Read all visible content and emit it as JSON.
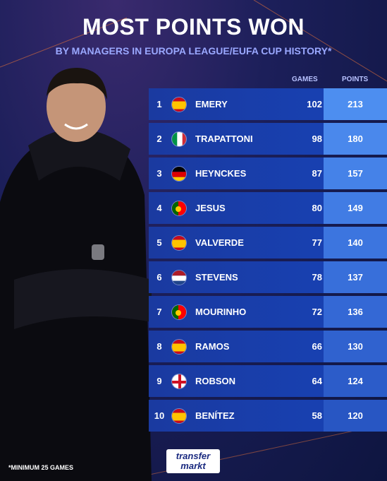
{
  "header": {
    "title": "MOST POINTS WON",
    "subtitle": "BY MANAGERS IN EUROPA LEAGUE/EUFA CUP HISTORY*"
  },
  "columns": {
    "games": "GAMES",
    "points": "POINTS"
  },
  "rows": [
    {
      "rank": "1",
      "country": "spain",
      "name": "EMERY",
      "games": "102",
      "points": "213"
    },
    {
      "rank": "2",
      "country": "italy",
      "name": "TRAPATTONI",
      "games": "98",
      "points": "180"
    },
    {
      "rank": "3",
      "country": "germany",
      "name": "HEYNCKES",
      "games": "87",
      "points": "157"
    },
    {
      "rank": "4",
      "country": "portugal",
      "name": "JESUS",
      "games": "80",
      "points": "149"
    },
    {
      "rank": "5",
      "country": "spain",
      "name": "VALVERDE",
      "games": "77",
      "points": "140"
    },
    {
      "rank": "6",
      "country": "netherlands",
      "name": "STEVENS",
      "games": "78",
      "points": "137"
    },
    {
      "rank": "7",
      "country": "portugal",
      "name": "MOURINHO",
      "games": "72",
      "points": "136"
    },
    {
      "rank": "8",
      "country": "spain",
      "name": "RAMOS",
      "games": "66",
      "points": "130"
    },
    {
      "rank": "9",
      "country": "england",
      "name": "ROBSON",
      "games": "64",
      "points": "124"
    },
    {
      "rank": "10",
      "country": "spain",
      "name": "BENÍTEZ",
      "games": "58",
      "points": "120"
    }
  ],
  "points_colors": [
    "#4d8ef0",
    "#4a88ec",
    "#4582e8",
    "#417ce4",
    "#3c75df",
    "#386fda",
    "#3468d5",
    "#3062cf",
    "#2c5cc9",
    "#2856c3"
  ],
  "footnote": "*MINIMUM 25 GAMES",
  "logo": {
    "line1": "transfer",
    "line2": "markt"
  }
}
